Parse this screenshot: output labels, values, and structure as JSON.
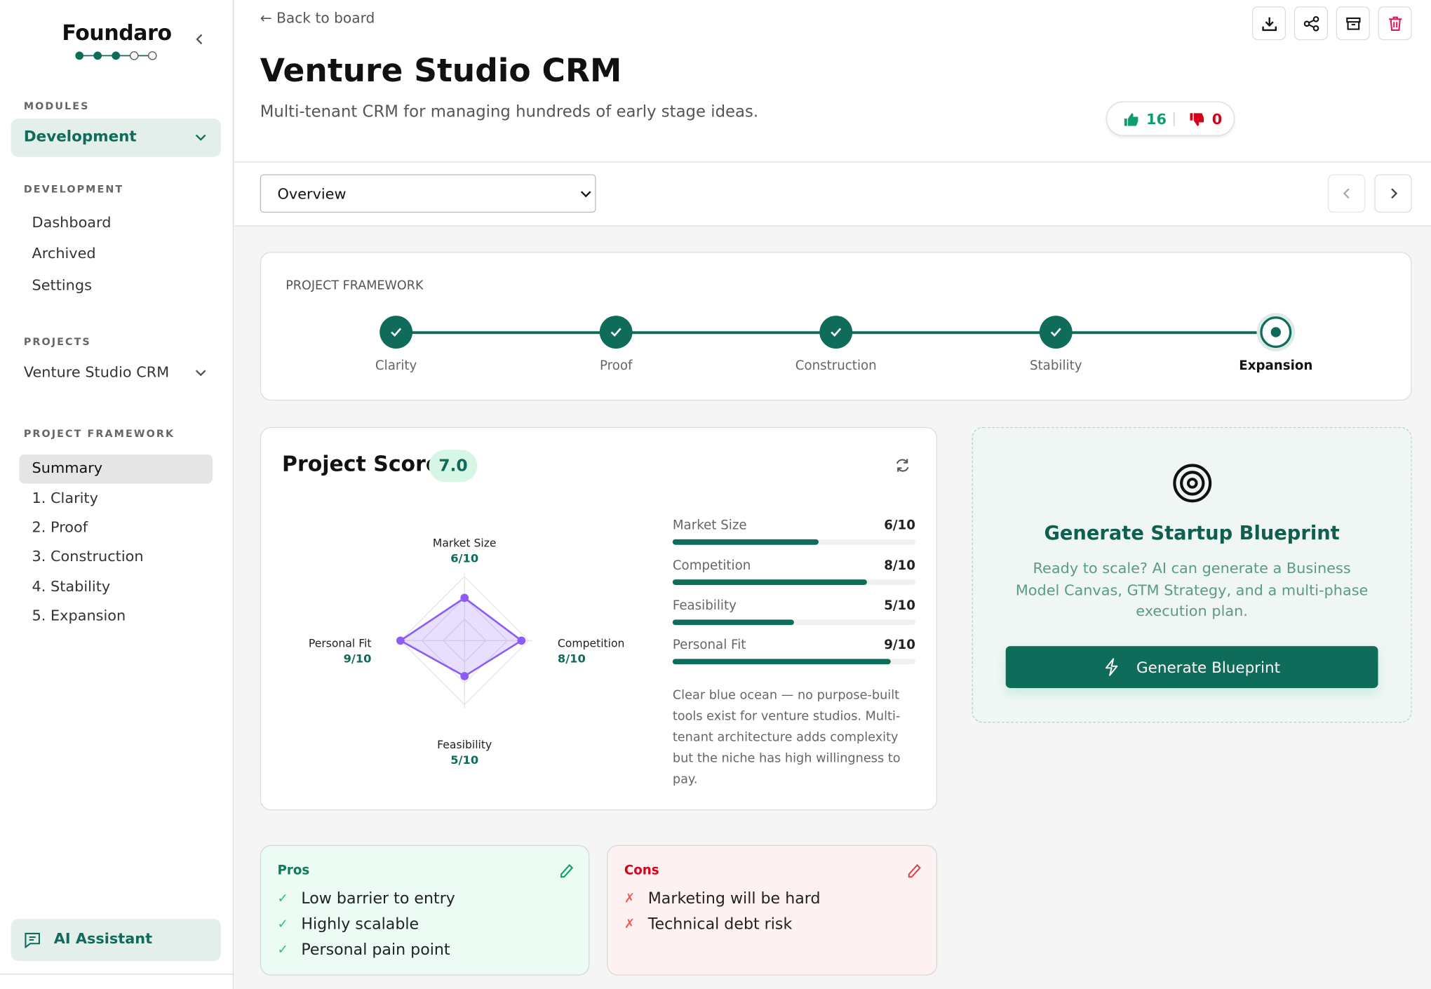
{
  "sidebar": {
    "logo": "Foundaro",
    "modules_label": "MODULES",
    "module_selected": "Development",
    "development_label": "DEVELOPMENT",
    "development_items": [
      "Dashboard",
      "Archived",
      "Settings"
    ],
    "projects_label": "PROJECTS",
    "project_selected": "Venture Studio CRM",
    "framework_label": "PROJECT FRAMEWORK",
    "framework_items": [
      "Summary",
      "1. Clarity",
      "2. Proof",
      "3. Construction",
      "4. Stability",
      "5. Expansion"
    ],
    "ai_assistant": "AI Assistant"
  },
  "header": {
    "back": "← Back to board",
    "title": "Venture Studio CRM",
    "subtitle": "Multi-tenant CRM for managing hundreds of early stage ideas.",
    "upvotes": "16",
    "downvotes": "0"
  },
  "view_select": "Overview",
  "framework": {
    "label": "PROJECT FRAMEWORK",
    "steps": [
      "Clarity",
      "Proof",
      "Construction",
      "Stability",
      "Expansion"
    ],
    "current_step": "Expansion"
  },
  "score": {
    "title": "Project Score",
    "value": "7.0",
    "description": "Clear blue ocean — no purpose-built tools exist for venture studios. Multi-tenant architecture adds complexity but the niche has high willingness to pay."
  },
  "chart_data": {
    "type": "radar",
    "categories": [
      "Market Size",
      "Competition",
      "Feasibility",
      "Personal Fit"
    ],
    "values": [
      6,
      8,
      5,
      9
    ],
    "max": 10,
    "value_labels": [
      "6/10",
      "8/10",
      "5/10",
      "9/10"
    ]
  },
  "blueprint": {
    "title": "Generate Startup Blueprint",
    "text": "Ready to scale? AI can generate a Business Model Canvas, GTM Strategy, and a multi-phase execution plan.",
    "button": "Generate Blueprint"
  },
  "pros": {
    "title": "Pros",
    "items": [
      "Low barrier to entry",
      "Highly scalable",
      "Personal pain point"
    ]
  },
  "cons": {
    "title": "Cons",
    "items": [
      "Marketing will be hard",
      "Technical debt risk"
    ]
  },
  "colors": {
    "accent": "#0f6b5a",
    "radar": "#8b5cf6",
    "danger": "#d9001b",
    "success": "#0f9d6a"
  }
}
